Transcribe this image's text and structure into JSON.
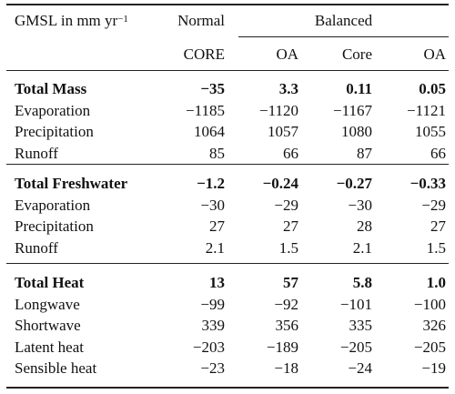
{
  "table": {
    "header": {
      "gmsl_label": "GMSL in mm yr",
      "gmsl_exp": "−1",
      "group_normal": "Normal",
      "group_balanced": "Balanced",
      "columns": [
        "CORE",
        "OA",
        "Core",
        "OA"
      ]
    },
    "sections": [
      {
        "title": "Total Mass",
        "totals": [
          "−35",
          "3.3",
          "0.11",
          "0.05"
        ],
        "rows": [
          {
            "label": "Evaporation",
            "values": [
              "−1185",
              "−1120",
              "−1167",
              "−1121"
            ]
          },
          {
            "label": "Precipitation",
            "values": [
              "1064",
              "1057",
              "1080",
              "1055"
            ]
          },
          {
            "label": "Runoff",
            "values": [
              "85",
              "66",
              "87",
              "66"
            ]
          }
        ]
      },
      {
        "title": "Total Freshwater",
        "totals": [
          "−1.2",
          "−0.24",
          "−0.27",
          "−0.33"
        ],
        "rows": [
          {
            "label": "Evaporation",
            "values": [
              "−30",
              "−29",
              "−30",
              "−29"
            ]
          },
          {
            "label": "Precipitation",
            "values": [
              "27",
              "27",
              "28",
              "27"
            ]
          },
          {
            "label": "Runoff",
            "values": [
              "2.1",
              "1.5",
              "2.1",
              "1.5"
            ]
          }
        ]
      },
      {
        "title": "Total Heat",
        "totals": [
          "13",
          "57",
          "5.8",
          "1.0"
        ],
        "rows": [
          {
            "label": "Longwave",
            "values": [
              "−99",
              "−92",
              "−101",
              "−100"
            ]
          },
          {
            "label": "Shortwave",
            "values": [
              "339",
              "356",
              "335",
              "326"
            ]
          },
          {
            "label": "Latent heat",
            "values": [
              "−203",
              "−189",
              "−205",
              "−205"
            ]
          },
          {
            "label": "Sensible heat",
            "values": [
              "−23",
              "−18",
              "−24",
              "−19"
            ]
          }
        ]
      }
    ]
  }
}
